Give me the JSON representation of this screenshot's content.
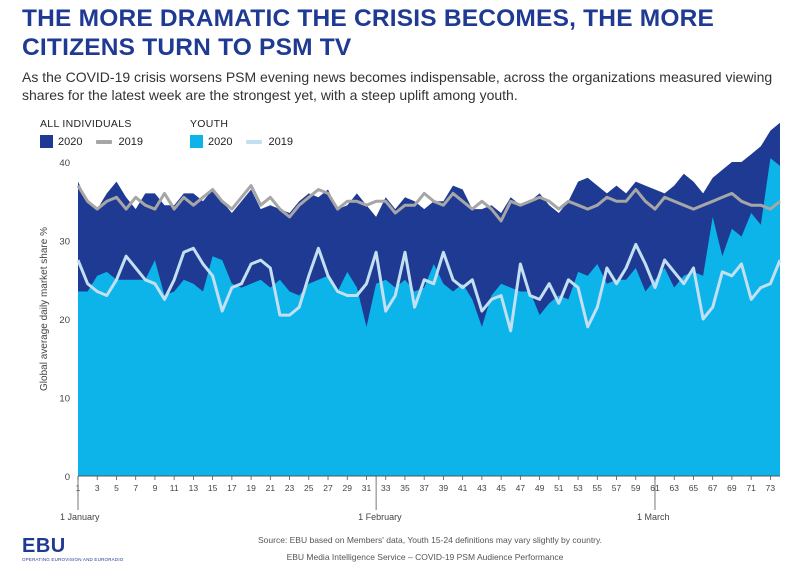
{
  "header": {
    "title": "THE MORE DRAMATIC THE CRISIS BECOMES, THE MORE CITIZENS TURN TO PSM TV",
    "subtitle": "As the COVID-19 crisis worsens PSM evening news becomes indispensable, across the organizations measured viewing shares for the latest week are the strongest yet, with a steep uplift among youth."
  },
  "legend": {
    "all_title": "ALL INDIVIDUALS",
    "youth_title": "YOUTH",
    "all_2020": "2020",
    "all_2019": "2019",
    "youth_2020": "2020",
    "youth_2019": "2019"
  },
  "colors": {
    "all_2020": "#1f3a93",
    "all_2019": "#a6a6a6",
    "youth_2020": "#0cb4ea",
    "youth_2019": "#c3dff2",
    "title": "#1f3a93"
  },
  "chart_data": {
    "type": "area",
    "ylabel": "Global average daily market share %",
    "ylim": [
      0,
      40
    ],
    "yticks": [
      0,
      10,
      20,
      30,
      40
    ],
    "x": [
      1,
      2,
      3,
      4,
      5,
      6,
      7,
      8,
      9,
      10,
      11,
      12,
      13,
      14,
      15,
      16,
      17,
      18,
      19,
      20,
      21,
      22,
      23,
      24,
      25,
      26,
      27,
      28,
      29,
      30,
      31,
      32,
      33,
      34,
      35,
      36,
      37,
      38,
      39,
      40,
      41,
      42,
      43,
      44,
      45,
      46,
      47,
      48,
      49,
      50,
      51,
      52,
      53,
      54,
      55,
      56,
      57,
      58,
      59,
      60,
      61,
      62,
      63,
      64,
      65,
      66,
      67,
      68,
      69,
      70,
      71,
      72,
      73,
      74
    ],
    "xticks": [
      1,
      3,
      5,
      7,
      9,
      11,
      13,
      15,
      17,
      19,
      21,
      23,
      25,
      27,
      29,
      31,
      33,
      35,
      37,
      39,
      41,
      43,
      45,
      47,
      49,
      51,
      53,
      55,
      57,
      59,
      61,
      63,
      65,
      67,
      69,
      71,
      73
    ],
    "month_labels": [
      {
        "label": "1 January",
        "x": 1
      },
      {
        "label": "1 February",
        "x": 32
      },
      {
        "label": "1 March",
        "x": 61
      }
    ],
    "series": [
      {
        "name": "All individuals 2020",
        "style": "area",
        "values": [
          37.5,
          35,
          34,
          36,
          37.5,
          35.5,
          34,
          36,
          36,
          34.5,
          34.5,
          36,
          36,
          35,
          36.5,
          35,
          33.5,
          35,
          36.5,
          34,
          34.5,
          34,
          33.5,
          35,
          36,
          35.5,
          36.5,
          34,
          34.5,
          36,
          34.5,
          33,
          35.5,
          34,
          35.5,
          35,
          34,
          35,
          35,
          37,
          36.5,
          34,
          34,
          34.5,
          33.5,
          35.5,
          34.5,
          35,
          36,
          34.5,
          33.5,
          35,
          37.5,
          38,
          37,
          36,
          37,
          36,
          37.5,
          37,
          36.5,
          36,
          37,
          38.5,
          37.5,
          36,
          38,
          39,
          40,
          40,
          41,
          42,
          44,
          45
        ]
      },
      {
        "name": "All individuals 2019",
        "style": "line",
        "values": [
          37,
          35,
          34,
          35,
          35.5,
          34,
          35.5,
          34.5,
          34,
          36,
          34,
          35.5,
          34.5,
          35.5,
          36.5,
          35,
          34,
          35.5,
          37,
          34.5,
          35.5,
          34,
          33,
          34.5,
          35.5,
          36.5,
          36,
          34,
          35,
          35,
          34.5,
          35,
          35,
          33.5,
          34.5,
          34.5,
          36,
          35,
          34.5,
          36,
          35,
          34,
          35,
          34,
          32.5,
          35,
          34.5,
          35,
          35.5,
          35,
          34,
          35,
          34.5,
          34,
          34.5,
          35.5,
          35,
          35,
          36.5,
          35,
          34,
          35.5,
          35,
          34.5,
          34,
          34.5,
          35,
          35.5,
          36,
          35,
          34.5,
          34.5,
          34,
          35
        ]
      },
      {
        "name": "Youth 2020",
        "style": "area",
        "values": [
          23.5,
          23.5,
          25.5,
          26,
          25,
          25,
          25,
          25,
          27.5,
          23,
          23.5,
          25,
          24.5,
          23.5,
          28,
          27.5,
          24.5,
          24,
          24.5,
          25,
          24,
          25,
          23.5,
          23,
          24.5,
          25,
          25.5,
          23.5,
          26,
          24,
          19,
          24.5,
          25,
          24,
          25,
          23.5,
          24,
          27,
          24.5,
          23.5,
          24.5,
          22.5,
          19,
          23,
          24.5,
          24,
          23.5,
          23.5,
          20.5,
          22,
          23,
          22.5,
          26,
          25.5,
          27,
          24.5,
          25,
          25,
          26.5,
          23.5,
          25,
          26.5,
          24,
          25.5,
          26,
          25.5,
          33,
          28,
          31.5,
          30.5,
          33.5,
          32,
          40.5,
          39.5
        ]
      },
      {
        "name": "Youth 2019",
        "style": "line",
        "values": [
          27.5,
          24.5,
          23.5,
          23,
          25,
          28,
          26.5,
          25,
          24.5,
          22.5,
          25,
          28.5,
          29,
          27,
          25.5,
          21,
          24,
          24.5,
          27,
          27.5,
          26.5,
          20.5,
          20.5,
          21.5,
          25.5,
          29,
          25.5,
          23.5,
          23,
          23,
          24.5,
          28.5,
          21,
          23,
          28.5,
          21.5,
          25,
          24.5,
          28.5,
          25,
          24,
          25,
          21,
          22.5,
          23,
          18.5,
          27,
          23,
          22.5,
          24.5,
          22,
          25,
          24,
          19,
          21.5,
          26.5,
          24.5,
          26.5,
          29.5,
          27,
          24,
          27.5,
          26,
          24.5,
          26.5,
          20,
          21.5,
          26,
          25.5,
          27,
          22.5,
          24,
          24.5,
          27.5
        ]
      }
    ]
  },
  "footer": {
    "source": "Source: EBU based on Members' data, Youth 15-24 definitions may vary slightly by country.",
    "credit": "EBU Media Intelligence Service – COVID-19 PSM Audience Performance",
    "logo_text": "EBU",
    "logo_tagline": "OPERATING EUROVISION AND EURORADIO"
  }
}
